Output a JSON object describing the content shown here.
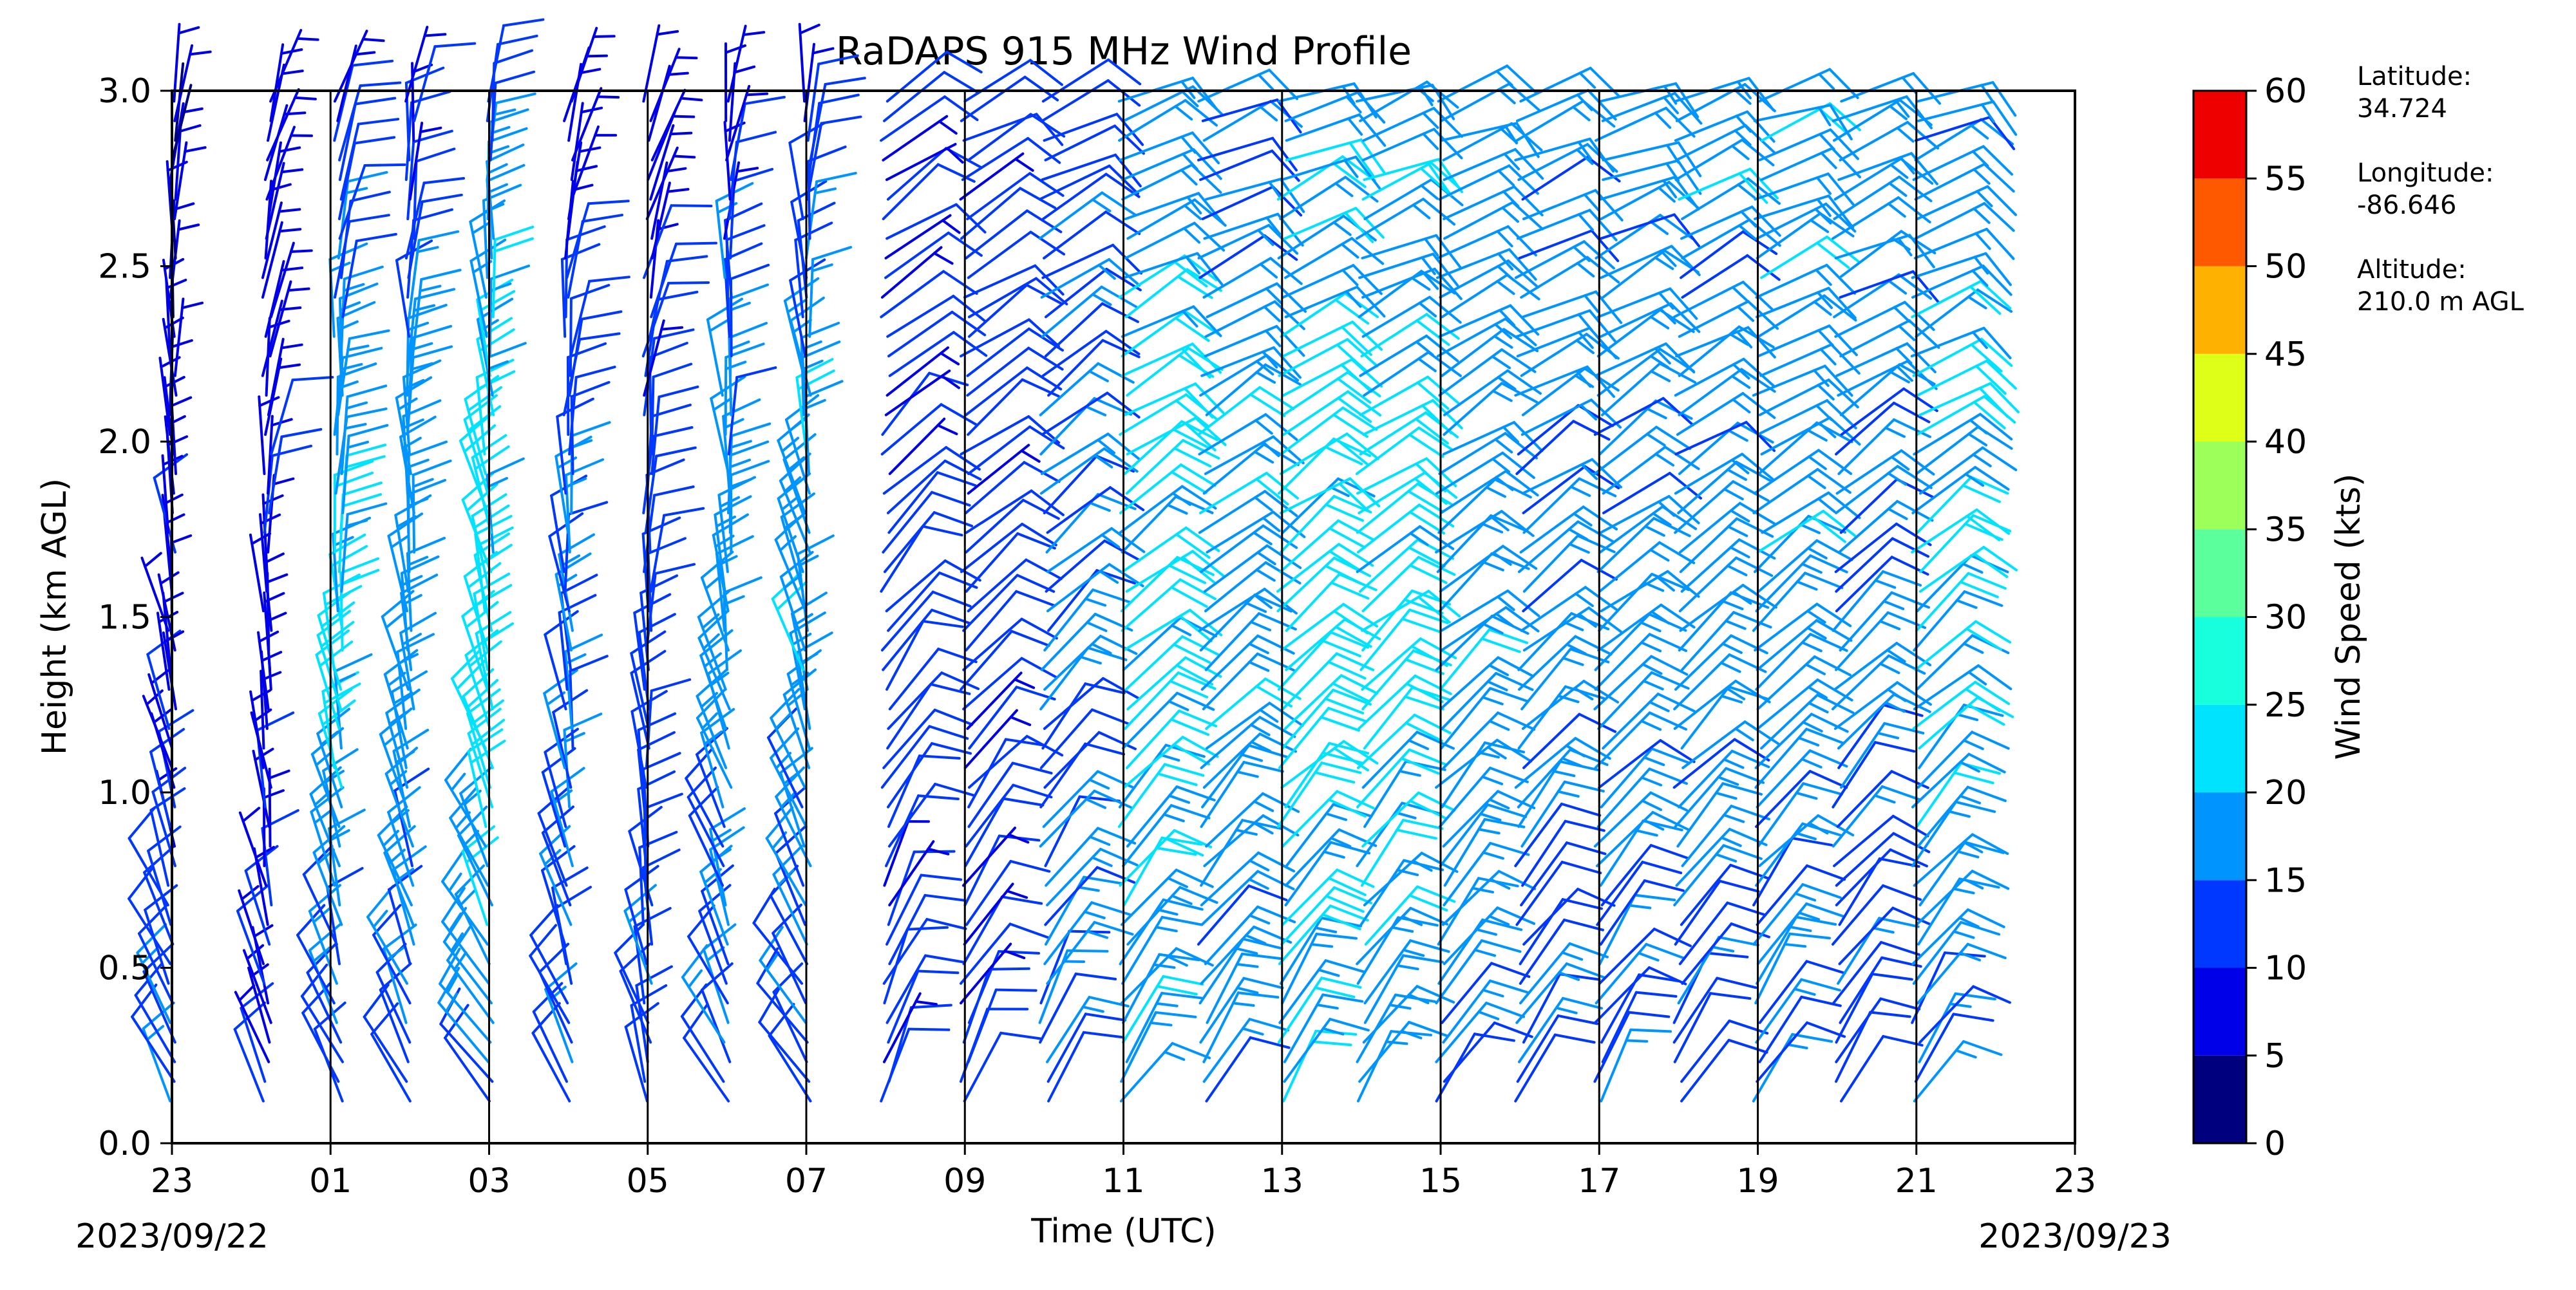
{
  "chart_data": {
    "type": "wind_barbs",
    "title": "RaDAPS 915 MHz Wind Profile",
    "xlabel": "Time (UTC)",
    "ylabel": "Height (km AGL)",
    "x_tick_labels": [
      "23",
      "01",
      "03",
      "05",
      "07",
      "09",
      "11",
      "13",
      "15",
      "17",
      "19",
      "21",
      "23"
    ],
    "x_tick_hours": [
      0,
      2,
      4,
      6,
      8,
      10,
      12,
      14,
      16,
      18,
      20,
      22,
      24
    ],
    "xlim_hours": [
      0,
      24
    ],
    "start_date_label": "2023/09/22",
    "end_date_label": "2023/09/23",
    "y_tick_labels": [
      "0.0",
      "0.5",
      "1.0",
      "1.5",
      "2.0",
      "2.5",
      "3.0"
    ],
    "y_ticks": [
      0.0,
      0.5,
      1.0,
      1.5,
      2.0,
      2.5,
      3.0
    ],
    "ylim": [
      0.0,
      3.0
    ],
    "vertical_lines_at_hours": [
      0,
      2,
      4,
      6,
      8,
      10,
      12,
      14,
      16,
      18,
      20,
      22,
      24
    ],
    "grid": false,
    "colorbar": {
      "label": "Wind Speed (kts)",
      "ticks": [
        "0",
        "5",
        "10",
        "15",
        "20",
        "25",
        "30",
        "35",
        "40",
        "45",
        "50",
        "55",
        "60"
      ],
      "range": [
        0,
        60
      ],
      "bin_colors": [
        "#00007f",
        "#0000e8",
        "#0038ff",
        "#0094ff",
        "#00e3ff",
        "#18ffdd",
        "#5bff9c",
        "#9cff5a",
        "#ddff18",
        "#ffb100",
        "#ff5900",
        "#ef0000",
        "#7f0000"
      ]
    },
    "station_info": {
      "latitude_label": "Latitude:",
      "latitude": "34.724",
      "longitude_label": "Longitude:",
      "longitude": "-86.646",
      "altitude_label": "Altitude:",
      "altitude": "210.0 m AGL"
    },
    "profiles": [
      {
        "hour": 0.0,
        "low_speed": 16,
        "mid_speed": 8,
        "high_speed": 6,
        "top_km": 3.0,
        "veer": -20
      },
      {
        "hour": 1.2,
        "low_speed": 10,
        "mid_speed": 8,
        "high_speed": 7,
        "top_km": 3.0,
        "veer": -10
      },
      {
        "hour": 2.1,
        "low_speed": 12,
        "mid_speed": 20,
        "high_speed": 10,
        "top_km": 3.0,
        "veer": -15
      },
      {
        "hour": 3.0,
        "low_speed": 12,
        "mid_speed": 18,
        "high_speed": 8,
        "top_km": 3.0,
        "veer": -20
      },
      {
        "hour": 4.0,
        "low_speed": 15,
        "mid_speed": 22,
        "high_speed": 12,
        "top_km": 3.0,
        "veer": -25
      },
      {
        "hour": 5.0,
        "low_speed": 14,
        "mid_speed": 15,
        "high_speed": 7,
        "top_km": 3.0,
        "veer": -15
      },
      {
        "hour": 6.0,
        "low_speed": 13,
        "mid_speed": 12,
        "high_speed": 8,
        "top_km": 3.0,
        "veer": -10
      },
      {
        "hour": 7.0,
        "low_speed": 14,
        "mid_speed": 17,
        "high_speed": 8,
        "top_km": 3.0,
        "veer": -20
      },
      {
        "hour": 8.0,
        "low_speed": 12,
        "mid_speed": 18,
        "high_speed": 10,
        "top_km": 3.0,
        "veer": -25
      },
      {
        "hour": 9.0,
        "low_speed": 10,
        "mid_speed": 12,
        "high_speed": 9,
        "top_km": 3.0,
        "veer": 30
      },
      {
        "hour": 10.0,
        "low_speed": 12,
        "mid_speed": 12,
        "high_speed": 12,
        "top_km": 3.0,
        "veer": 35
      },
      {
        "hour": 11.0,
        "low_speed": 14,
        "mid_speed": 16,
        "high_speed": 12,
        "top_km": 3.0,
        "veer": 35
      },
      {
        "hour": 12.0,
        "low_speed": 18,
        "mid_speed": 22,
        "high_speed": 14,
        "top_km": 3.0,
        "veer": 40
      },
      {
        "hour": 13.0,
        "low_speed": 16,
        "mid_speed": 18,
        "high_speed": 15,
        "top_km": 3.0,
        "veer": 40
      },
      {
        "hour": 14.0,
        "low_speed": 18,
        "mid_speed": 22,
        "high_speed": 18,
        "top_km": 3.0,
        "veer": 40
      },
      {
        "hour": 15.0,
        "low_speed": 16,
        "mid_speed": 22,
        "high_speed": 18,
        "top_km": 3.0,
        "veer": 40
      },
      {
        "hour": 16.0,
        "low_speed": 14,
        "mid_speed": 18,
        "high_speed": 18,
        "top_km": 3.0,
        "veer": 40
      },
      {
        "hour": 17.0,
        "low_speed": 14,
        "mid_speed": 16,
        "high_speed": 17,
        "top_km": 3.0,
        "veer": 40
      },
      {
        "hour": 18.0,
        "low_speed": 13,
        "mid_speed": 17,
        "high_speed": 17,
        "top_km": 3.0,
        "veer": 40
      },
      {
        "hour": 19.0,
        "low_speed": 13,
        "mid_speed": 17,
        "high_speed": 18,
        "top_km": 3.0,
        "veer": 40
      },
      {
        "hour": 20.0,
        "low_speed": 14,
        "mid_speed": 18,
        "high_speed": 18,
        "top_km": 3.0,
        "veer": 40
      },
      {
        "hour": 21.0,
        "low_speed": 12,
        "mid_speed": 16,
        "high_speed": 18,
        "top_km": 3.0,
        "veer": 40
      },
      {
        "hour": 22.0,
        "low_speed": 14,
        "mid_speed": 20,
        "high_speed": 16,
        "top_km": 3.0,
        "veer": 40
      }
    ]
  }
}
